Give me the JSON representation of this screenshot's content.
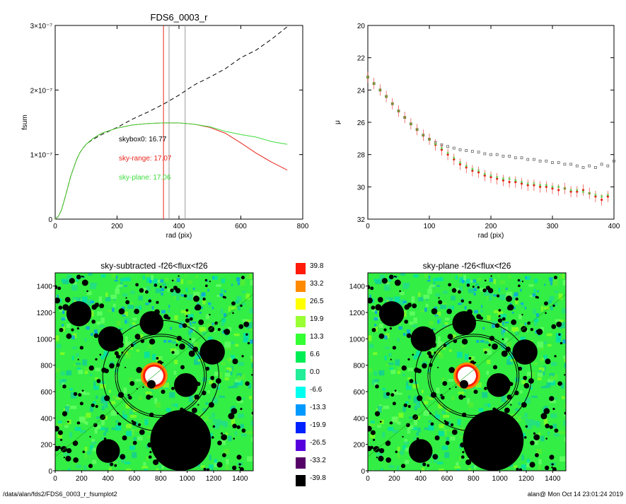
{
  "footer": {
    "path": "/data/alan/fds2/FDS6_0003_r_fsumplot2",
    "stamp": "alan@  Mon Oct 14 23:01:24 2019"
  },
  "chart_data": [
    {
      "type": "line",
      "title": "FDS6_0003_r",
      "xlabel": "rad (pix)",
      "ylabel": "fsum",
      "xlim": [
        0,
        800
      ],
      "ylim": [
        0,
        3e-07
      ],
      "x_ticks": [
        "0",
        "200",
        "400",
        "600",
        "800"
      ],
      "y_ticks": [
        "0",
        "1×10⁻⁷",
        "2×10⁻⁷",
        "3×10⁻⁷"
      ],
      "y_tick_values": [
        0,
        1e-07,
        2e-07,
        3e-07
      ],
      "annotations": [
        {
          "text": "skybox0: 16.77",
          "color": "#000000"
        },
        {
          "text": "sky-range: 17.07",
          "color": "#e8251c"
        },
        {
          "text": "sky-plane: 17.06",
          "color": "#3ddc3d"
        }
      ],
      "vlines": [
        {
          "x": 350,
          "color": "#e8251c"
        },
        {
          "x": 368,
          "color": "#999999"
        },
        {
          "x": 420,
          "color": "#999999"
        }
      ],
      "series": [
        {
          "style": "dashed",
          "color": "#000000",
          "x": [
            0,
            10,
            20,
            30,
            40,
            50,
            60,
            70,
            80,
            90,
            100,
            120,
            150,
            200,
            250,
            300,
            350,
            400,
            450,
            500,
            550,
            600,
            650,
            700,
            750
          ],
          "y": [
            0,
            4e-09,
            1.4e-08,
            3e-08,
            4.8e-08,
            6.6e-08,
            8e-08,
            9.3e-08,
            1.03e-07,
            1.1e-07,
            1.16e-07,
            1.23e-07,
            1.31e-07,
            1.42e-07,
            1.55e-07,
            1.66e-07,
            1.78e-07,
            1.92e-07,
            2.08e-07,
            2.2e-07,
            2.33e-07,
            2.5e-07,
            2.62e-07,
            2.79e-07,
            2.98e-07
          ]
        },
        {
          "style": "solid",
          "color": "#e8251c",
          "x": [
            0,
            10,
            20,
            30,
            40,
            50,
            60,
            70,
            80,
            90,
            100,
            120,
            150,
            200,
            250,
            300,
            350,
            400,
            450,
            500,
            550,
            600,
            650,
            700,
            750
          ],
          "y": [
            0,
            4e-09,
            1.4e-08,
            3e-08,
            4.8e-08,
            6.6e-08,
            8e-08,
            9.3e-08,
            1.03e-07,
            1.1e-07,
            1.16e-07,
            1.24e-07,
            1.33e-07,
            1.41e-07,
            1.46e-07,
            1.48e-07,
            1.49e-07,
            1.49e-07,
            1.47e-07,
            1.42e-07,
            1.33e-07,
            1.18e-07,
            1.02e-07,
            8.8e-08,
            7.6e-08
          ]
        },
        {
          "style": "solid",
          "color": "#3ddc3d",
          "x": [
            0,
            10,
            20,
            30,
            40,
            50,
            60,
            70,
            80,
            90,
            100,
            120,
            150,
            200,
            250,
            300,
            350,
            400,
            450,
            500,
            550,
            600,
            650,
            700,
            750
          ],
          "y": [
            0,
            4e-09,
            1.4e-08,
            3e-08,
            4.8e-08,
            6.6e-08,
            8e-08,
            9.3e-08,
            1.03e-07,
            1.1e-07,
            1.16e-07,
            1.24e-07,
            1.33e-07,
            1.41e-07,
            1.46e-07,
            1.48e-07,
            1.49e-07,
            1.49e-07,
            1.47e-07,
            1.43e-07,
            1.36e-07,
            1.31e-07,
            1.27e-07,
            1.2e-07,
            1.16e-07
          ]
        }
      ]
    },
    {
      "type": "scatter",
      "title": "",
      "xlabel": "rad (pix)",
      "ylabel": "μ",
      "xlim": [
        0,
        400
      ],
      "ylim": [
        32,
        20
      ],
      "x_ticks": [
        "0",
        "100",
        "200",
        "300",
        "400"
      ],
      "y_ticks": [
        "20",
        "22",
        "24",
        "26",
        "28",
        "30",
        "32"
      ],
      "y_tick_values": [
        20,
        22,
        24,
        26,
        28,
        30,
        32
      ],
      "series": [
        {
          "color": "#666666",
          "marker": "square",
          "x": [
            0,
            10,
            20,
            30,
            40,
            50,
            60,
            70,
            80,
            90,
            100,
            110,
            120,
            130,
            140,
            150,
            160,
            170,
            180,
            190,
            200,
            210,
            220,
            230,
            240,
            250,
            260,
            270,
            280,
            290,
            300,
            310,
            320,
            330,
            340,
            350,
            360,
            370,
            380,
            390,
            400
          ],
          "y": [
            23.2,
            23.6,
            24.0,
            24.4,
            24.85,
            25.3,
            25.7,
            26.1,
            26.45,
            26.8,
            27.05,
            27.25,
            27.4,
            27.5,
            27.6,
            27.7,
            27.75,
            27.8,
            27.85,
            27.95,
            28.0,
            28.0,
            28.1,
            28.1,
            28.2,
            28.2,
            28.3,
            28.3,
            28.4,
            28.4,
            28.5,
            28.5,
            28.6,
            28.6,
            28.7,
            28.8,
            28.7,
            28.8,
            28.6,
            28.7,
            28.4
          ]
        },
        {
          "color": "#e8251c",
          "marker": "dot",
          "x": [
            0,
            10,
            20,
            30,
            40,
            50,
            60,
            70,
            80,
            90,
            100,
            110,
            120,
            130,
            140,
            150,
            160,
            170,
            180,
            190,
            200,
            210,
            220,
            230,
            240,
            250,
            260,
            270,
            280,
            290,
            300,
            310,
            320,
            330,
            340,
            350,
            360,
            370,
            380,
            390
          ],
          "y": [
            23.2,
            23.6,
            24.0,
            24.4,
            24.85,
            25.3,
            25.7,
            26.1,
            26.45,
            26.8,
            27.05,
            27.4,
            27.7,
            28.0,
            28.3,
            28.6,
            28.8,
            29.0,
            29.1,
            29.3,
            29.4,
            29.5,
            29.6,
            29.7,
            29.7,
            29.8,
            29.9,
            29.9,
            30.0,
            30.0,
            30.1,
            30.2,
            30.1,
            30.3,
            30.3,
            30.2,
            30.4,
            30.6,
            30.8,
            30.6
          ]
        },
        {
          "color": "#3ddc3d",
          "marker": "x",
          "x": [
            0,
            10,
            20,
            30,
            40,
            50,
            60,
            70,
            80,
            90,
            100,
            110,
            120,
            130,
            140,
            150,
            160,
            170,
            180,
            190,
            200,
            210,
            220,
            230,
            240,
            250,
            260,
            270,
            280,
            290,
            300,
            310,
            320,
            330,
            340,
            350,
            360,
            370,
            380,
            390
          ],
          "y": [
            23.2,
            23.6,
            24.0,
            24.4,
            24.85,
            25.3,
            25.7,
            26.1,
            26.45,
            26.8,
            27.05,
            27.35,
            27.6,
            27.9,
            28.2,
            28.5,
            28.7,
            28.9,
            29.0,
            29.2,
            29.3,
            29.4,
            29.5,
            29.5,
            29.6,
            29.7,
            29.8,
            29.8,
            29.9,
            29.9,
            30.0,
            30.0,
            30.1,
            30.2,
            30.2,
            30.3,
            30.4,
            30.5,
            30.6,
            30.5
          ]
        }
      ]
    },
    {
      "type": "heatmap",
      "title": "sky-subtracted -f26<flux<f26",
      "xlim": [
        0,
        1500
      ],
      "ylim": [
        0,
        1500
      ],
      "x_ticks": [
        "0",
        "200",
        "400",
        "600",
        "800",
        "1000",
        "1200",
        "1400"
      ],
      "y_ticks": [
        "0",
        "200",
        "400",
        "600",
        "800",
        "1000",
        "1200",
        "1400"
      ],
      "masks": [
        {
          "x": 950,
          "y": 230,
          "r": 230
        },
        {
          "x": 730,
          "y": 1120,
          "r": 90
        },
        {
          "x": 420,
          "y": 1000,
          "r": 95
        },
        {
          "x": 1190,
          "y": 900,
          "r": 95
        },
        {
          "x": 180,
          "y": 1190,
          "r": 95
        },
        {
          "x": 990,
          "y": 650,
          "r": 90
        },
        {
          "x": 400,
          "y": 150,
          "r": 90
        }
      ],
      "galaxy": {
        "x": 750,
        "y": 720,
        "r": 80
      },
      "ellipses": [
        {
          "x": 800,
          "y": 720,
          "rx": 330,
          "ry": 300
        },
        {
          "x": 800,
          "y": 720,
          "rx": 345,
          "ry": 315
        },
        {
          "x": 800,
          "y": 720,
          "rx": 440,
          "ry": 420
        }
      ]
    },
    {
      "type": "heatmap",
      "title": "sky-plane -f26<flux<f26",
      "xlim": [
        0,
        1500
      ],
      "ylim": [
        0,
        1500
      ],
      "x_ticks": [
        "0",
        "200",
        "400",
        "600",
        "800",
        "1000",
        "1200",
        "1400"
      ],
      "y_ticks": [
        "0",
        "200",
        "400",
        "600",
        "800",
        "1000",
        "1200",
        "1400"
      ],
      "masks": [
        {
          "x": 950,
          "y": 230,
          "r": 230
        },
        {
          "x": 730,
          "y": 1120,
          "r": 90
        },
        {
          "x": 420,
          "y": 1000,
          "r": 95
        },
        {
          "x": 1190,
          "y": 900,
          "r": 95
        },
        {
          "x": 180,
          "y": 1190,
          "r": 95
        },
        {
          "x": 990,
          "y": 650,
          "r": 90
        },
        {
          "x": 400,
          "y": 150,
          "r": 90
        }
      ],
      "galaxy": {
        "x": 750,
        "y": 720,
        "r": 80
      },
      "ellipses": [
        {
          "x": 800,
          "y": 720,
          "rx": 330,
          "ry": 300
        },
        {
          "x": 800,
          "y": 720,
          "rx": 345,
          "ry": 315
        },
        {
          "x": 800,
          "y": 720,
          "rx": 440,
          "ry": 420
        }
      ]
    }
  ],
  "colorbar": {
    "labels": [
      "39.8",
      "33.2",
      "26.5",
      "19.9",
      "13.3",
      "6.6",
      "0.0",
      "-6.6",
      "-13.3",
      "-19.9",
      "-26.5",
      "-33.2",
      "-39.8"
    ],
    "colors": [
      "#ff1a0a",
      "#ff8a00",
      "#ffff00",
      "#99ff33",
      "#33ff33",
      "#00ee55",
      "#22ee99",
      "#00ffee",
      "#0099ff",
      "#0022ff",
      "#5500dd",
      "#550066",
      "#000000"
    ]
  }
}
